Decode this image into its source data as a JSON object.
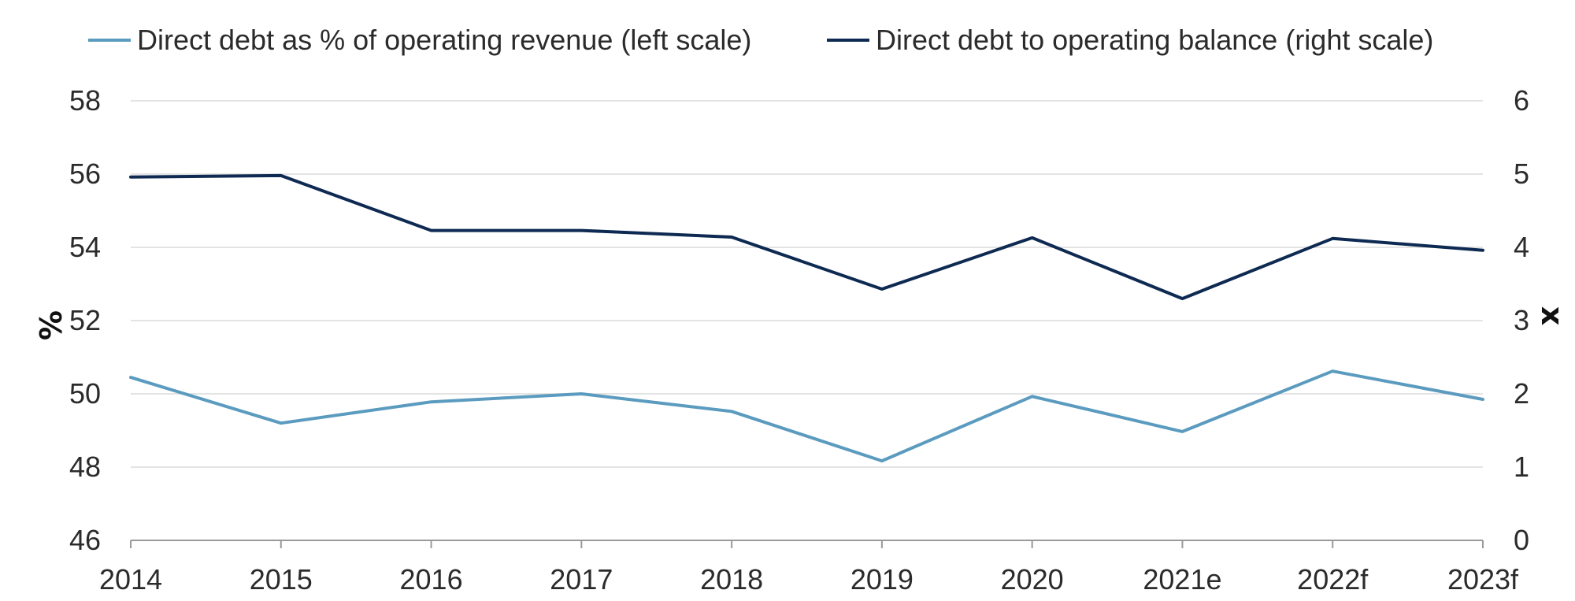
{
  "chart_data": {
    "type": "line",
    "x": [
      "2014",
      "2015",
      "2016",
      "2017",
      "2018",
      "2019",
      "2020",
      "2021e",
      "2022f",
      "2023f"
    ],
    "series": [
      {
        "name": "Direct debt as % of operating revenue (left scale)",
        "axis": "left",
        "color": "#5b9bbf",
        "values": [
          50.45,
          49.2,
          49.78,
          50.0,
          49.52,
          48.17,
          49.93,
          48.97,
          50.62,
          49.85
        ]
      },
      {
        "name": "Direct debt to operating balance (right scale)",
        "axis": "right",
        "color": "#0e2a52",
        "values": [
          4.96,
          4.98,
          4.23,
          4.23,
          4.14,
          3.43,
          4.13,
          3.3,
          4.12,
          3.96
        ]
      }
    ],
    "left_axis": {
      "label": "%",
      "range": [
        46,
        58
      ],
      "ticks": [
        "46",
        "48",
        "50",
        "52",
        "54",
        "56",
        "58"
      ]
    },
    "right_axis": {
      "label": "x",
      "range": [
        0,
        6
      ],
      "ticks": [
        "0",
        "1",
        "2",
        "3",
        "4",
        "5",
        "6"
      ]
    },
    "grid": true,
    "legend_position": "top"
  }
}
